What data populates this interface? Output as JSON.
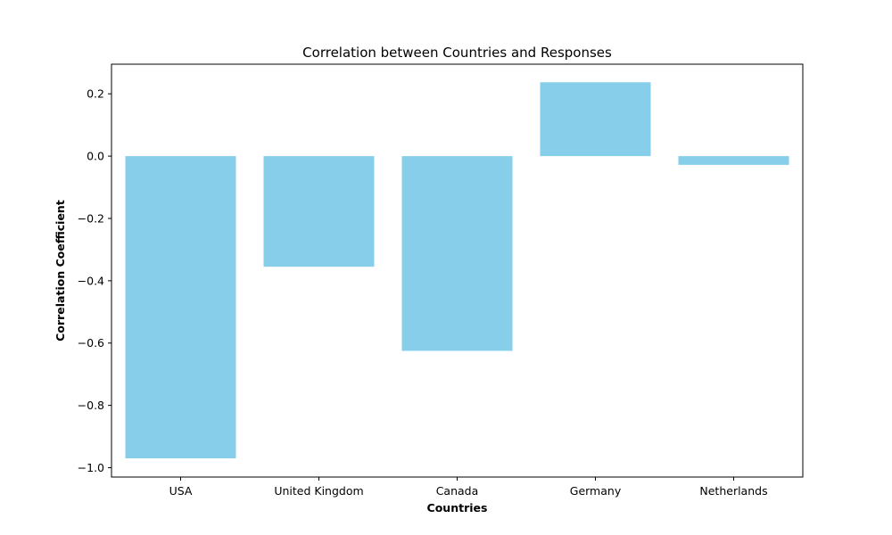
{
  "chart_data": {
    "type": "bar",
    "title": "Correlation between Countries and Responses",
    "xlabel": "Countries",
    "ylabel": "Correlation Coefficient",
    "categories": [
      "USA",
      "United Kingdom",
      "Canada",
      "Germany",
      "Netherlands"
    ],
    "values": [
      -0.97,
      -0.355,
      -0.625,
      0.237,
      -0.028
    ],
    "ylim": [
      -1.03,
      0.295
    ],
    "yticks": [
      -1.0,
      -0.8,
      -0.6,
      -0.4,
      -0.2,
      0.0,
      0.2
    ],
    "ytick_labels": [
      "−1.0",
      "−0.8",
      "−0.6",
      "−0.4",
      "−0.2",
      "0.0",
      "0.2"
    ],
    "grid": false,
    "legend": false,
    "bar_color": "#87ceeb"
  }
}
